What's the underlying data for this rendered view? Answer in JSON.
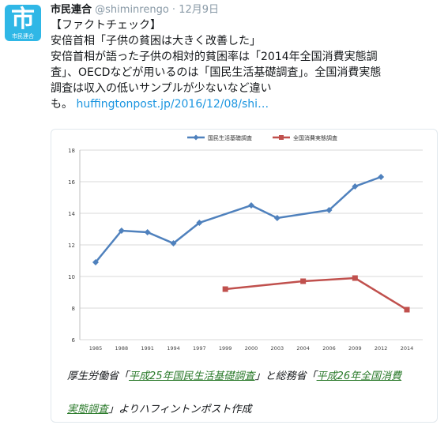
{
  "tweet": {
    "display_name": "市民連合",
    "handle": "@shiminrengo",
    "separator": " · ",
    "date": "12月9日",
    "avatar_glyph": "市",
    "avatar_subtext": "市民連合",
    "avatar_color": "#2fb7e6",
    "lines": [
      "【ファクトチェック】",
      "安倍首相「子供の貧困は大きく改善した」",
      "安倍首相が語った子供の相対的貧困率は「2014年全国消費実態調",
      "査」、OECDなどが用いるのは「国民生活基礎調査」。全国消費実態",
      "調査は収入の低いサンプルが少ないなど違い"
    ],
    "last_line_prefix": "も。",
    "link_text": "huffingtonpost.jp/2016/12/08/shi…"
  },
  "chart_data": {
    "type": "line",
    "x": [
      "1985",
      "1988",
      "1991",
      "1994",
      "1997",
      "1999",
      "2000",
      "2003",
      "2004",
      "2006",
      "2009",
      "2012",
      "2014"
    ],
    "ylim": [
      6,
      18
    ],
    "yticks": [
      6,
      8,
      10,
      12,
      14,
      16,
      18
    ],
    "grid": true,
    "legend_position": "top",
    "series": [
      {
        "name": "国民生活基礎調査",
        "color": "#4f81bd",
        "values": [
          10.9,
          12.9,
          12.8,
          12.1,
          13.4,
          null,
          14.5,
          13.7,
          null,
          14.2,
          15.7,
          16.3,
          null
        ]
      },
      {
        "name": "全国消費実態調査",
        "color": "#c0504d",
        "values": [
          null,
          null,
          null,
          null,
          null,
          9.2,
          null,
          null,
          9.7,
          null,
          9.9,
          null,
          7.9
        ]
      }
    ]
  },
  "caption": {
    "part1": "厚生労働省「",
    "link1": "平成25年国民生活基礎調査",
    "part2": "」と総務省「",
    "link2a": "平成26年全国消費",
    "link2b": "実態調査",
    "part3": "」よりハフィントンポスト作成"
  }
}
